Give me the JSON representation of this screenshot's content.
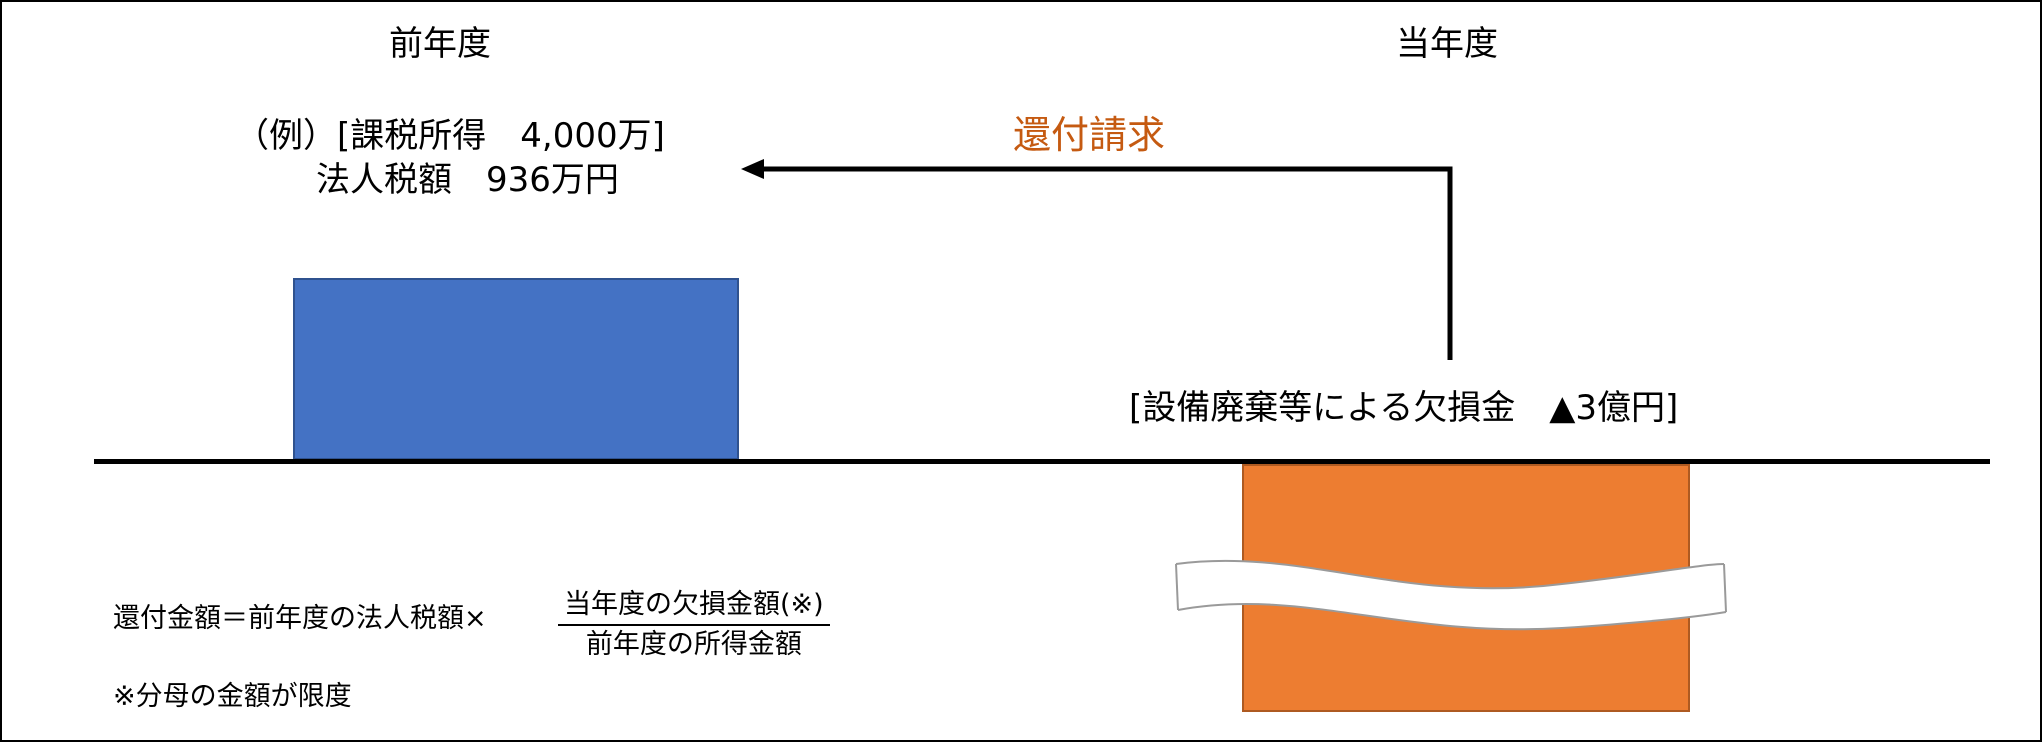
{
  "headers": {
    "previous_year": "前年度",
    "current_year": "当年度"
  },
  "example": {
    "line1": "（例）[課税所得　4,000万]",
    "line2": "法人税額　936万円"
  },
  "refund_claim": {
    "label": "還付請求",
    "color": "#C55A11"
  },
  "loss": {
    "label": "[設備廃棄等による欠損金　▲3億円]"
  },
  "formula": {
    "lhs": "還付金額＝前年度の法人税額×",
    "numerator": "当年度の欠損金額(※)",
    "denominator": "前年度の所得金額"
  },
  "note": "※分母の金額が限度",
  "colors": {
    "previous_bar": "#4472C4",
    "loss_bar": "#ED7D31"
  }
}
